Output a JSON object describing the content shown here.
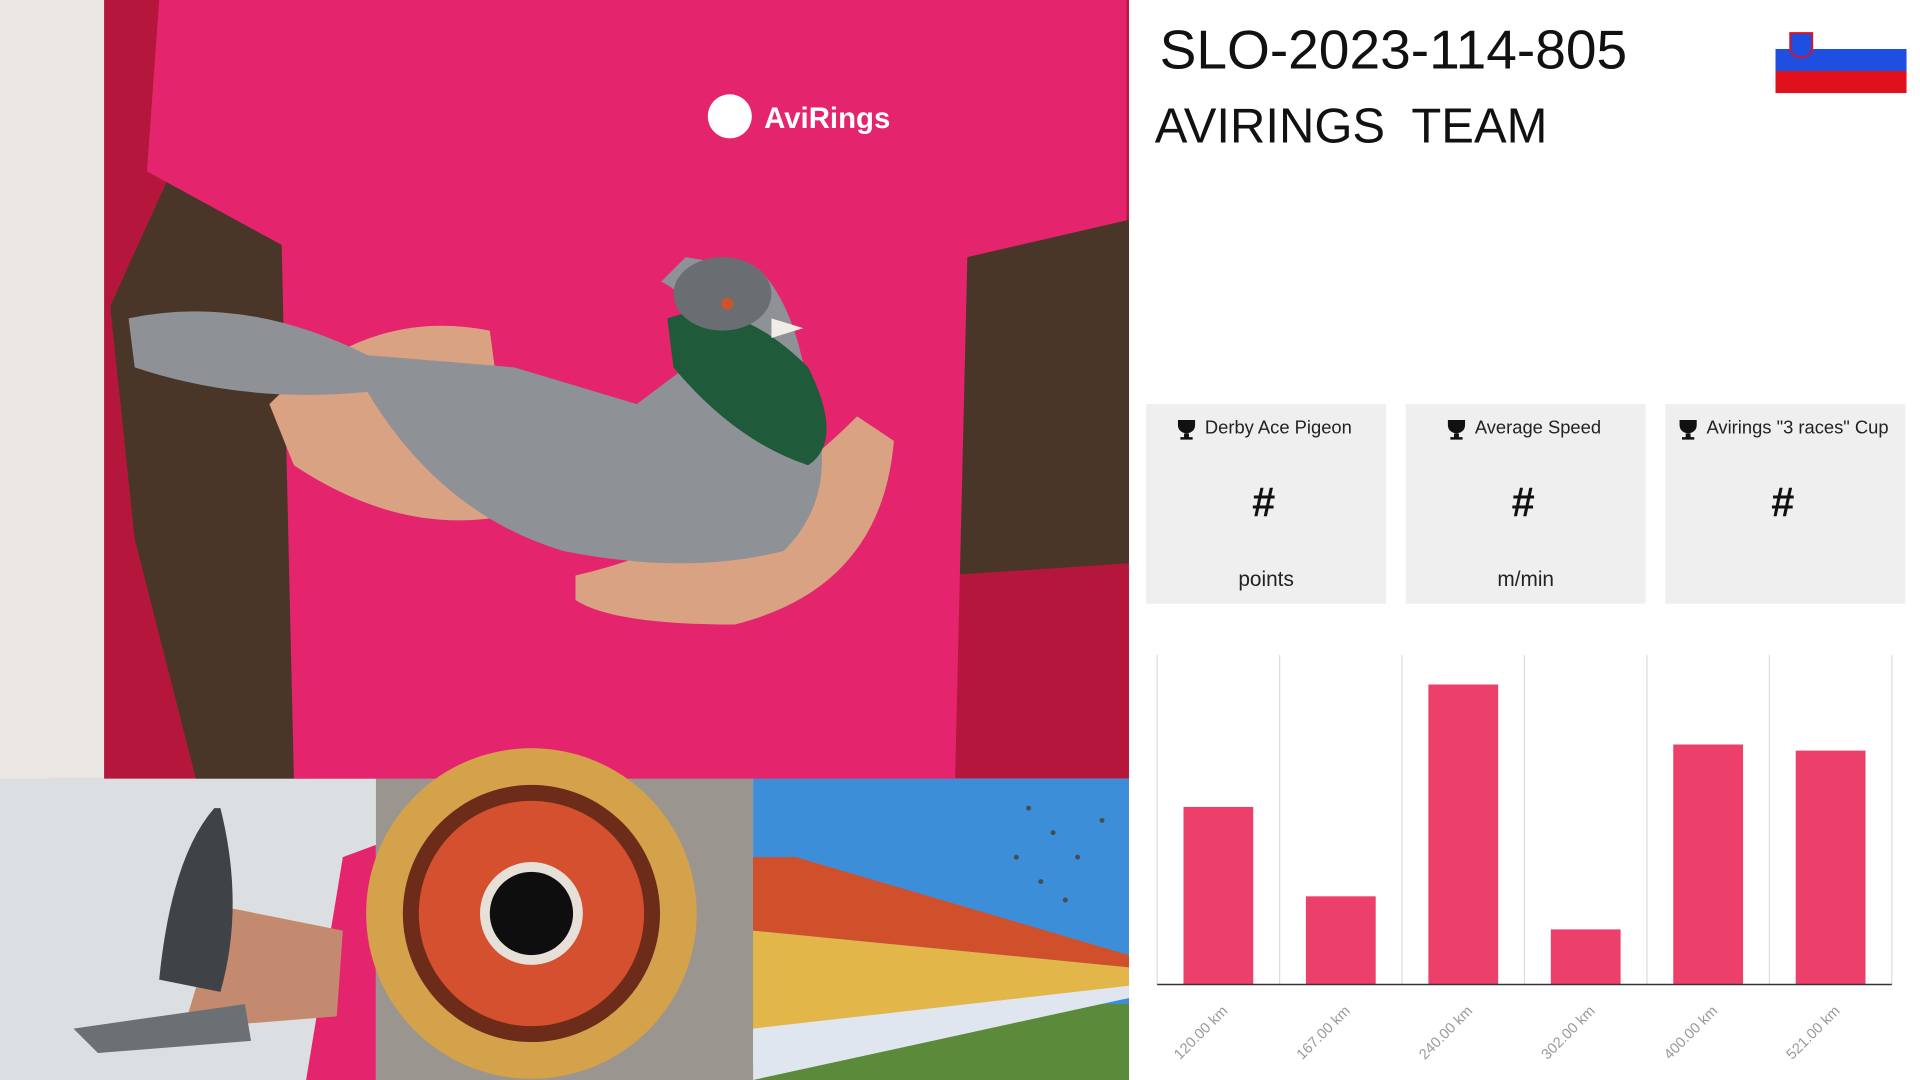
{
  "header": {
    "ring": "SLO-2023-114-805",
    "owner": "AVIRINGS  TEAM"
  },
  "photo": {
    "logo": "AviRings"
  },
  "stats": [
    {
      "title": "Derby Ace Pigeon",
      "value": "#",
      "unit": "points"
    },
    {
      "title": "Average Speed",
      "value": "#",
      "unit": "m/min"
    },
    {
      "title": "Avirings \"3 races\" Cup",
      "value": "#",
      "unit": ""
    }
  ],
  "chart_data": {
    "type": "bar",
    "categories": [
      "120.00 km",
      "167.00 km",
      "240.00 km",
      "302.00 km",
      "400.00 km",
      "521.00 km"
    ],
    "values": [
      145,
      72,
      245,
      45,
      196,
      191
    ],
    "color": "#ec406b",
    "ylim": [
      0,
      269
    ]
  }
}
